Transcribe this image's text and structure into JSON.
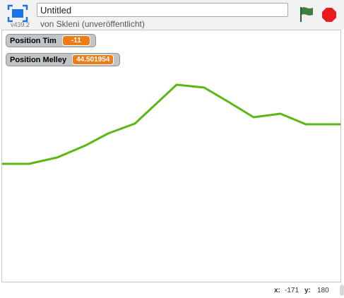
{
  "header": {
    "project_title": "Untitled",
    "byline": "von Skleni (unveröffentlicht)",
    "version": "v439.2",
    "icons": {
      "fullscreen": "fullscreen-icon",
      "green_flag": "green-flag-icon",
      "stop": "stop-sign-icon"
    }
  },
  "monitors": [
    {
      "label": "Position Tim",
      "value": "-11"
    },
    {
      "label": "Position Melley",
      "value": "44.501954"
    }
  ],
  "stage": {
    "pen_color": "#5cb712"
  },
  "footer": {
    "x_label": "x:",
    "x_value": "-171",
    "y_label": "y:",
    "y_value": "180"
  },
  "colors": {
    "monitor_value_bg": "#ee7d16",
    "flag": "#3f7f3f",
    "stop": "#e81c1c",
    "fullscreen": "#1a73e8"
  }
}
